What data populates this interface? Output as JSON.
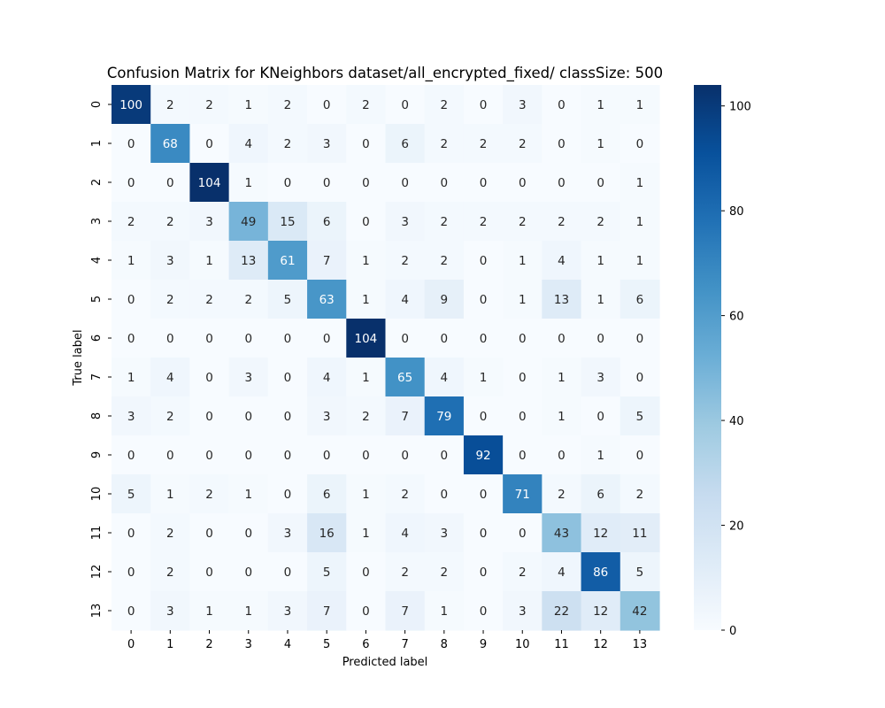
{
  "chart_data": {
    "type": "heatmap",
    "title": "Confusion Matrix for KNeighbors dataset/all_encrypted_fixed/ classSize: 500",
    "xlabel": "Predicted label",
    "ylabel": "True label",
    "x_categories": [
      "0",
      "1",
      "2",
      "3",
      "4",
      "5",
      "6",
      "7",
      "8",
      "9",
      "10",
      "11",
      "12",
      "13"
    ],
    "y_categories": [
      "0",
      "1",
      "2",
      "3",
      "4",
      "5",
      "6",
      "7",
      "8",
      "9",
      "10",
      "11",
      "12",
      "13"
    ],
    "matrix": [
      [
        100,
        2,
        2,
        1,
        2,
        0,
        2,
        0,
        2,
        0,
        3,
        0,
        1,
        1
      ],
      [
        0,
        68,
        0,
        4,
        2,
        3,
        0,
        6,
        2,
        2,
        2,
        0,
        1,
        0
      ],
      [
        0,
        0,
        104,
        1,
        0,
        0,
        0,
        0,
        0,
        0,
        0,
        0,
        0,
        1
      ],
      [
        2,
        2,
        3,
        49,
        15,
        6,
        0,
        3,
        2,
        2,
        2,
        2,
        2,
        1
      ],
      [
        1,
        3,
        1,
        13,
        61,
        7,
        1,
        2,
        2,
        0,
        1,
        4,
        1,
        1
      ],
      [
        0,
        2,
        2,
        2,
        5,
        63,
        1,
        4,
        9,
        0,
        1,
        13,
        1,
        6
      ],
      [
        0,
        0,
        0,
        0,
        0,
        0,
        104,
        0,
        0,
        0,
        0,
        0,
        0,
        0
      ],
      [
        1,
        4,
        0,
        3,
        0,
        4,
        1,
        65,
        4,
        1,
        0,
        1,
        3,
        0
      ],
      [
        3,
        2,
        0,
        0,
        0,
        3,
        2,
        7,
        79,
        0,
        0,
        1,
        0,
        5
      ],
      [
        0,
        0,
        0,
        0,
        0,
        0,
        0,
        0,
        0,
        92,
        0,
        0,
        1,
        0
      ],
      [
        5,
        1,
        2,
        1,
        0,
        6,
        1,
        2,
        0,
        0,
        71,
        2,
        6,
        2
      ],
      [
        0,
        2,
        0,
        0,
        3,
        16,
        1,
        4,
        3,
        0,
        0,
        43,
        12,
        11
      ],
      [
        0,
        2,
        0,
        0,
        0,
        5,
        0,
        2,
        2,
        0,
        2,
        4,
        86,
        5
      ],
      [
        0,
        3,
        1,
        1,
        3,
        7,
        0,
        7,
        1,
        0,
        3,
        22,
        12,
        42
      ]
    ],
    "colormap": "Blues",
    "value_range": [
      0,
      104
    ],
    "colorbar_ticks": [
      0,
      20,
      40,
      60,
      80,
      100
    ],
    "grid": false
  }
}
